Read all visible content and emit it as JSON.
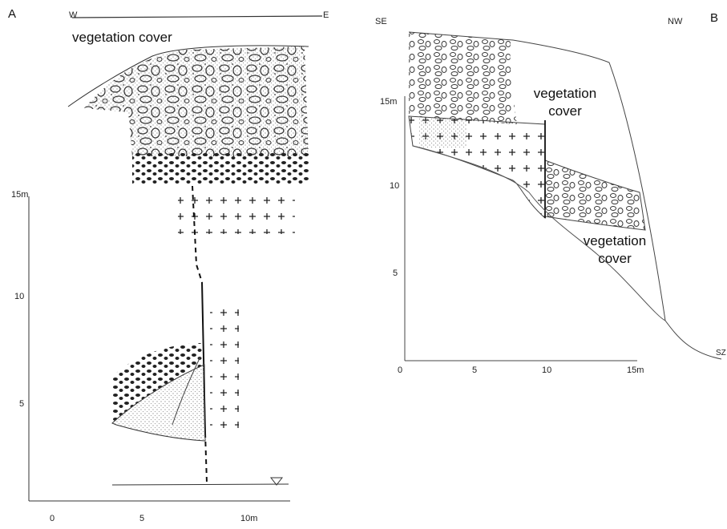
{
  "panel_a": {
    "label": "A",
    "west": "W",
    "east": "E",
    "annotation": "vegetation cover",
    "y_axis": [
      "15m",
      "10",
      "5"
    ],
    "x_axis": [
      "0",
      "5",
      "10m"
    ]
  },
  "panel_b": {
    "label": "B",
    "southeast": "SE",
    "northwest": "NW",
    "annotations": [
      "vegetation cover",
      "vegetation cover"
    ],
    "y_axis": [
      "15m",
      "10",
      "5"
    ],
    "x_axis": [
      "0",
      "5",
      "10",
      "15m"
    ],
    "marker": "SZ"
  }
}
